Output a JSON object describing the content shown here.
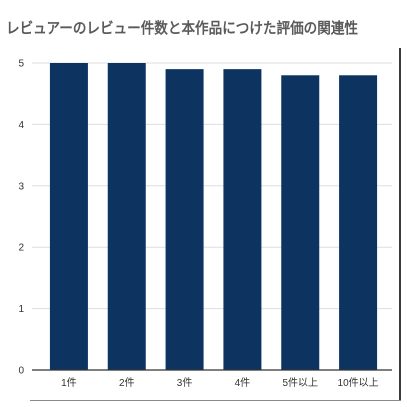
{
  "chart_data": {
    "type": "bar",
    "title": "レビュアーのレビュー件数と本作品につけた評価の関連性",
    "categories": [
      "1件",
      "2件",
      "3件",
      "4件",
      "5件以上",
      "10件以上"
    ],
    "values": [
      5.0,
      5.0,
      4.9,
      4.9,
      4.8,
      4.8
    ],
    "xlabel": "",
    "ylabel": "",
    "ylim": [
      0,
      5
    ],
    "yticks": [
      "0",
      "1",
      "2",
      "3",
      "4",
      "5"
    ],
    "grid": true,
    "legend": "none"
  },
  "colors": {
    "bar": "#0d3461",
    "grid": "#dddddd",
    "axis": "#333333",
    "title": "#5a5a5a",
    "text": "#333333"
  }
}
